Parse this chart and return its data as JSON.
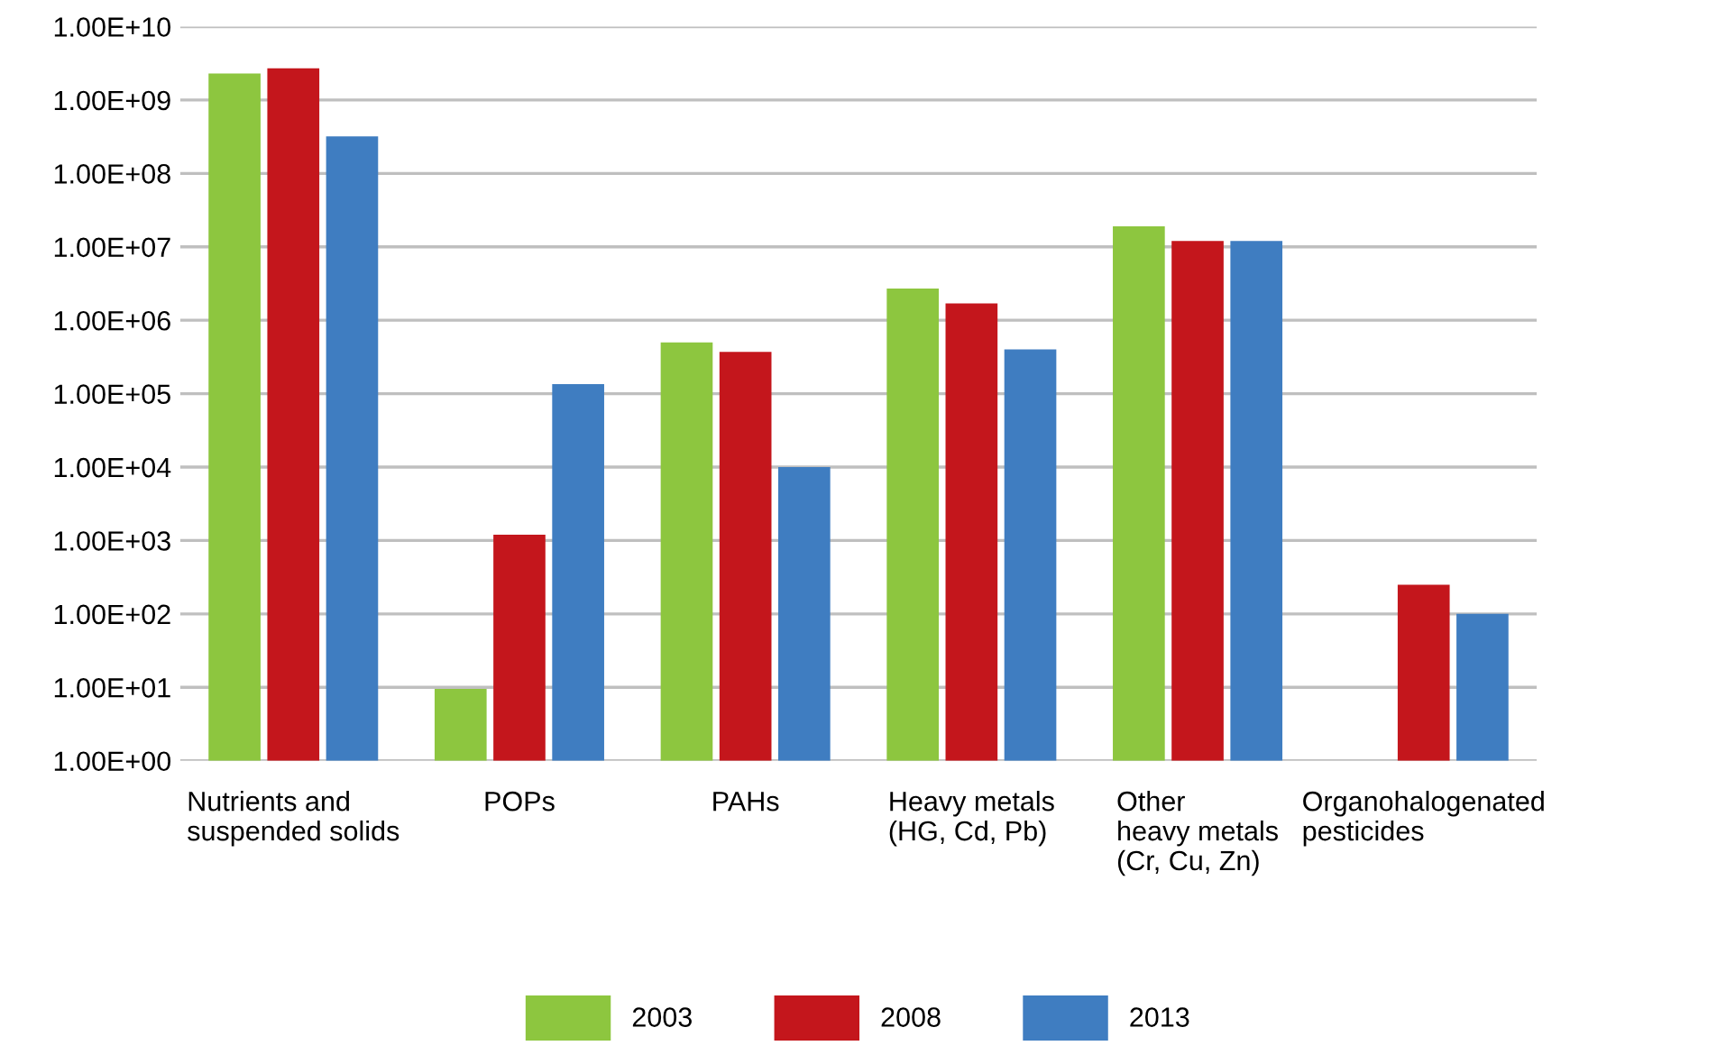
{
  "chart_data": {
    "type": "bar",
    "categories": [
      "Nutrients and\nsuspended solids",
      "POPs",
      "PAHs",
      "Heavy metals\n(HG, Cd, Pb)",
      "Other\nheavy metals\n(Cr, Cu, Zn)",
      "Organohalogenated\npesticides"
    ],
    "series": [
      {
        "name": "2003",
        "color": "#8dc63f",
        "values": [
          2300000000,
          9.5,
          500000,
          2700000,
          19000000,
          null
        ]
      },
      {
        "name": "2008",
        "color": "#c4161c",
        "values": [
          2700000000,
          1200,
          370000,
          1700000,
          12000000,
          250
        ]
      },
      {
        "name": "2013",
        "color": "#3f7dc1",
        "values": [
          320000000,
          135000,
          10000,
          400000,
          12000000,
          100
        ]
      }
    ],
    "log": true,
    "ylim": [
      1,
      10000000000
    ],
    "yticks": [
      {
        "value": 1,
        "label": "1.00E+00"
      },
      {
        "value": 10,
        "label": "1.00E+01"
      },
      {
        "value": 100,
        "label": "1.00E+02"
      },
      {
        "value": 1000,
        "label": "1.00E+03"
      },
      {
        "value": 10000,
        "label": "1.00E+04"
      },
      {
        "value": 100000,
        "label": "1.00E+05"
      },
      {
        "value": 1000000,
        "label": "1.00E+06"
      },
      {
        "value": 10000000,
        "label": "1.00E+07"
      },
      {
        "value": 100000000,
        "label": "1.00E+08"
      },
      {
        "value": 1000000000,
        "label": "1.00E+09"
      },
      {
        "value": 10000000000,
        "label": "1.00E+10"
      }
    ],
    "grid": "y",
    "legend": "bottom"
  }
}
